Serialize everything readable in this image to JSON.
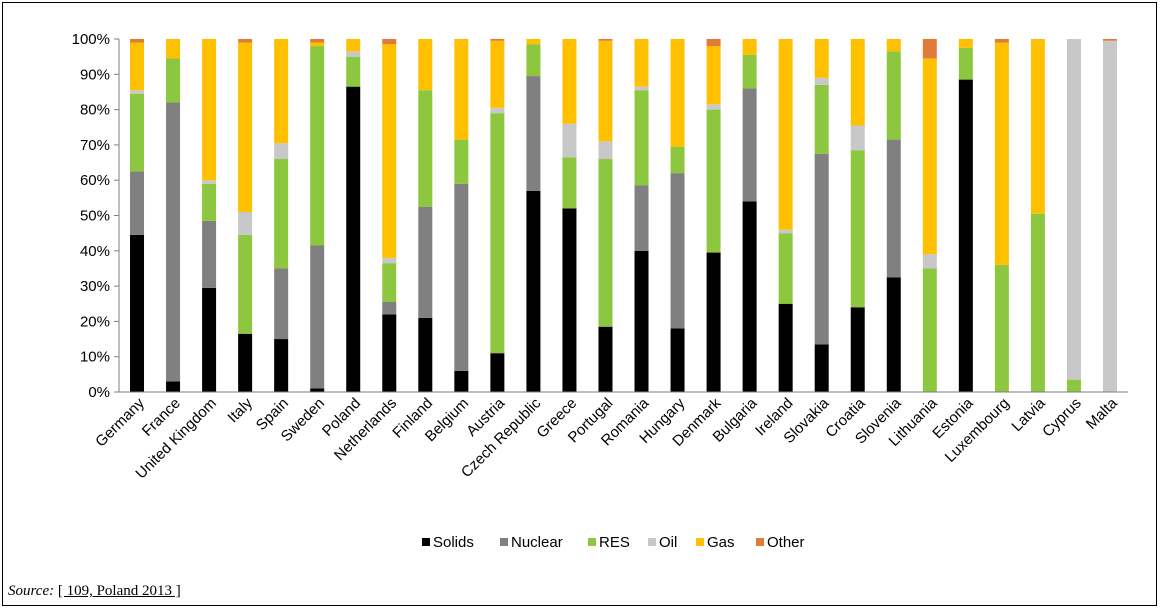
{
  "source": {
    "label": "Source:",
    "reference": "[ 109, Poland 2013 ]"
  },
  "chart_data": {
    "type": "bar",
    "stacked": true,
    "ylim": [
      0,
      100
    ],
    "yticks": [
      0,
      10,
      20,
      30,
      40,
      50,
      60,
      70,
      80,
      90,
      100
    ],
    "ytick_labels": [
      "0%",
      "10%",
      "20%",
      "30%",
      "40%",
      "50%",
      "60%",
      "70%",
      "80%",
      "90%",
      "100%"
    ],
    "legend_position": "bottom",
    "grid": false,
    "categories": [
      "Germany",
      "France",
      "United Kingdom",
      "Italy",
      "Spain",
      "Sweden",
      "Poland",
      "Netherlands",
      "Finland",
      "Belgium",
      "Austria",
      "Czech Republic",
      "Greece",
      "Portugal",
      "Romania",
      "Hungary",
      "Denmark",
      "Bulgaria",
      "Ireland",
      "Slovakia",
      "Croatia",
      "Slovenia",
      "Lithuania",
      "Estonia",
      "Luxembourg",
      "Latvia",
      "Cyprus",
      "Malta"
    ],
    "series": [
      {
        "name": "Solids",
        "color": "#000000",
        "values": [
          44.5,
          3,
          29.5,
          16.5,
          15,
          1,
          86.5,
          22,
          21,
          6,
          11,
          57,
          52,
          18.5,
          40,
          18,
          39.5,
          54,
          25,
          13.5,
          24,
          32.5,
          0,
          88.5,
          0,
          0,
          0,
          0
        ]
      },
      {
        "name": "Nuclear",
        "color": "#808080",
        "values": [
          18,
          79,
          19,
          0,
          20,
          40.5,
          0,
          3.5,
          31.5,
          53,
          0,
          32.5,
          0,
          0,
          18.5,
          44,
          0,
          32,
          0,
          54,
          0,
          39,
          0,
          0,
          0,
          0,
          0,
          0
        ]
      },
      {
        "name": "RES",
        "color": "#8dc63f",
        "values": [
          22,
          12.5,
          10.5,
          28,
          31,
          56.5,
          8.5,
          11,
          33,
          12.5,
          68,
          9,
          14.5,
          47.5,
          27,
          7.5,
          40.5,
          9.5,
          20,
          19.5,
          44.5,
          25,
          35,
          9,
          36,
          50.5,
          3.5,
          0
        ]
      },
      {
        "name": "Oil",
        "color": "#c8c8c8",
        "values": [
          1,
          0,
          1,
          6.5,
          4.5,
          0,
          1.5,
          1.5,
          0,
          0,
          1.5,
          0,
          9.5,
          5,
          1,
          0,
          1.5,
          0,
          1,
          2,
          7,
          0,
          4,
          0,
          0,
          0,
          96.5,
          99.5
        ]
      },
      {
        "name": "Gas",
        "color": "#ffc000",
        "values": [
          13.5,
          5.5,
          40,
          48,
          29.5,
          1,
          3.5,
          60.5,
          14.5,
          28.5,
          19,
          1.5,
          24,
          28.5,
          13.5,
          30.5,
          16.5,
          4.5,
          54,
          11,
          24.5,
          3.5,
          55.5,
          2.5,
          63,
          49.5,
          0,
          0
        ]
      },
      {
        "name": "Other",
        "color": "#e07b39",
        "values": [
          1,
          0,
          0,
          1,
          0,
          1,
          0,
          1.5,
          0,
          0,
          0.5,
          0,
          0,
          0.5,
          0,
          0,
          2,
          0,
          0,
          0,
          0,
          0,
          5.5,
          0,
          1,
          0,
          0,
          0.5
        ]
      }
    ]
  }
}
